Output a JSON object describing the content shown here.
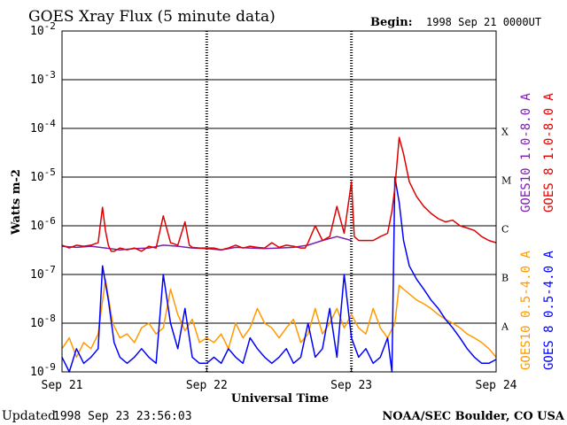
{
  "chart_data": {
    "type": "line",
    "title": "GOES Xray Flux (5 minute data)",
    "begin_label": "Begin:",
    "begin_value": "1998 Sep 21 0000UT",
    "xlabel": "Universal Time",
    "ylabel": "Watts m-2",
    "ylim": [
      1e-09,
      0.01
    ],
    "yscale": "log",
    "x_unit": "days since 1998 Sep 21 00:00 UT",
    "xlim": [
      0,
      3
    ],
    "x_ticks": [
      {
        "x": 0,
        "label": "Sep 21"
      },
      {
        "x": 1,
        "label": "Sep 22"
      },
      {
        "x": 2,
        "label": "Sep 23"
      },
      {
        "x": 3,
        "label": "Sep 24"
      }
    ],
    "y_ticks": [
      {
        "exp": -2,
        "base": "10",
        "power": "-2"
      },
      {
        "exp": -3,
        "base": "10",
        "power": "-3"
      },
      {
        "exp": -4,
        "base": "10",
        "power": "-4"
      },
      {
        "exp": -5,
        "base": "10",
        "power": "-5"
      },
      {
        "exp": -6,
        "base": "10",
        "power": "-6"
      },
      {
        "exp": -7,
        "base": "10",
        "power": "-7"
      },
      {
        "exp": -8,
        "base": "10",
        "power": "-8"
      },
      {
        "exp": -9,
        "base": "10",
        "power": "-9"
      }
    ],
    "flare_classes": [
      {
        "label": "X",
        "exp": -4
      },
      {
        "label": "M",
        "exp": -5
      },
      {
        "label": "C",
        "exp": -6
      },
      {
        "label": "B",
        "exp": -7
      },
      {
        "label": "A",
        "exp": -8
      }
    ],
    "grid": "horizontal lines at each decade from 1e-8 to 1e-3",
    "colors": {
      "goes10_long": "#7a1fb0",
      "goes8_long": "#e00000",
      "goes10_short": "#ff9900",
      "goes8_short": "#0000ff"
    },
    "legend_placement": "right, vertical text",
    "legend": [
      {
        "name": "GOES10 1.0-8.0 A",
        "color": "#7a1fb0"
      },
      {
        "name": "GOES 8 1.0-8.0 A",
        "color": "#e00000"
      },
      {
        "name": "GOES10 0.5-4.0 A",
        "color": "#ff9900"
      },
      {
        "name": "GOES 8 0.5-4.0 A",
        "color": "#0000ff"
      }
    ],
    "series": [
      {
        "name": "GOES 8 1.0-8.0 A",
        "color": "#e00000",
        "x": [
          0,
          0.05,
          0.1,
          0.15,
          0.2,
          0.25,
          0.28,
          0.3,
          0.32,
          0.34,
          0.36,
          0.4,
          0.45,
          0.5,
          0.55,
          0.6,
          0.65,
          0.7,
          0.75,
          0.8,
          0.85,
          0.88,
          0.9,
          0.95,
          1.0,
          1.05,
          1.1,
          1.15,
          1.2,
          1.25,
          1.3,
          1.35,
          1.4,
          1.45,
          1.5,
          1.55,
          1.6,
          1.65,
          1.68,
          1.7,
          1.75,
          1.8,
          1.85,
          1.9,
          1.95,
          2.0,
          2.02,
          2.05,
          2.1,
          2.15,
          2.2,
          2.25,
          2.28,
          2.3,
          2.33,
          2.36,
          2.4,
          2.45,
          2.5,
          2.55,
          2.6,
          2.65,
          2.7,
          2.75,
          2.8,
          2.85,
          2.9,
          2.95,
          3.0
        ],
        "y": [
          4e-07,
          3.5e-07,
          4e-07,
          3.8e-07,
          4e-07,
          4.5e-07,
          2.4e-06,
          8e-07,
          4e-07,
          3e-07,
          3e-07,
          3.5e-07,
          3.2e-07,
          3.5e-07,
          3e-07,
          3.8e-07,
          3.5e-07,
          1.6e-06,
          4.5e-07,
          4e-07,
          1.2e-06,
          4e-07,
          3.6e-07,
          3.5e-07,
          3.5e-07,
          3.5e-07,
          3.2e-07,
          3.5e-07,
          4e-07,
          3.5e-07,
          3.8e-07,
          3.6e-07,
          3.5e-07,
          4.5e-07,
          3.6e-07,
          4e-07,
          3.8e-07,
          3.5e-07,
          3.5e-07,
          4.5e-07,
          1e-06,
          5e-07,
          6e-07,
          2.5e-06,
          7e-07,
          8e-06,
          6e-07,
          5e-07,
          5e-07,
          5e-07,
          6e-07,
          7e-07,
          2e-06,
          6e-06,
          6.5e-05,
          3e-05,
          8e-06,
          4e-06,
          2.5e-06,
          1.8e-06,
          1.4e-06,
          1.2e-06,
          1.3e-06,
          1e-06,
          9e-07,
          8e-07,
          6e-07,
          5e-07,
          4.5e-07
        ]
      },
      {
        "name": "GOES10 1.0-8.0 A",
        "color": "#7a1fb0",
        "x": [
          0,
          0.1,
          0.2,
          0.3,
          0.4,
          0.5,
          0.6,
          0.7,
          0.8,
          0.9,
          1.0,
          1.1,
          1.2,
          1.3,
          1.4,
          1.5,
          1.6,
          1.7,
          1.8,
          1.9,
          2.0
        ],
        "y": [
          3.8e-07,
          3.6e-07,
          3.8e-07,
          3.5e-07,
          3.2e-07,
          3.4e-07,
          3.5e-07,
          4e-07,
          3.8e-07,
          3.5e-07,
          3.4e-07,
          3.2e-07,
          3.6e-07,
          3.5e-07,
          3.4e-07,
          3.5e-07,
          3.6e-07,
          4e-07,
          5e-07,
          6e-07,
          5e-07
        ]
      },
      {
        "name": "GOES10 0.5-4.0 A",
        "color": "#ff9900",
        "x": [
          0,
          0.05,
          0.1,
          0.15,
          0.2,
          0.25,
          0.3,
          0.35,
          0.4,
          0.45,
          0.5,
          0.55,
          0.6,
          0.65,
          0.7,
          0.75,
          0.8,
          0.85,
          0.9,
          0.95,
          1.0,
          1.05,
          1.1,
          1.15,
          1.2,
          1.25,
          1.3,
          1.35,
          1.4,
          1.45,
          1.5,
          1.55,
          1.6,
          1.65,
          1.7,
          1.75,
          1.8,
          1.85,
          1.9,
          1.95,
          2.0,
          2.05,
          2.1,
          2.15,
          2.2,
          2.25,
          2.3,
          2.33,
          2.36,
          2.4,
          2.45,
          2.5,
          2.55,
          2.6,
          2.65,
          2.7,
          2.75,
          2.8,
          2.85,
          2.9,
          2.95,
          3.0
        ],
        "y": [
          3e-09,
          5e-09,
          2e-09,
          4e-09,
          3e-09,
          6e-09,
          8e-08,
          1e-08,
          5e-09,
          6e-09,
          4e-09,
          8e-09,
          1e-08,
          6e-09,
          8e-09,
          5e-08,
          1.5e-08,
          7e-09,
          1.2e-08,
          4e-09,
          5e-09,
          4e-09,
          6e-09,
          3e-09,
          1e-08,
          5e-09,
          8e-09,
          2e-08,
          1e-08,
          8e-09,
          5e-09,
          8e-09,
          1.2e-08,
          4e-09,
          6e-09,
          2e-08,
          6e-09,
          1e-08,
          2e-08,
          8e-09,
          1.5e-08,
          8e-09,
          6e-09,
          2e-08,
          8e-09,
          5e-09,
          1e-08,
          6e-08,
          5e-08,
          4e-08,
          3e-08,
          2.5e-08,
          2e-08,
          1.5e-08,
          1.2e-08,
          1e-08,
          8e-09,
          6e-09,
          5e-09,
          4e-09,
          3e-09,
          2e-09
        ]
      },
      {
        "name": "GOES 8 0.5-4.0 A",
        "color": "#0000ff",
        "x": [
          0,
          0.05,
          0.1,
          0.15,
          0.2,
          0.25,
          0.28,
          0.32,
          0.36,
          0.4,
          0.45,
          0.5,
          0.55,
          0.6,
          0.65,
          0.7,
          0.75,
          0.8,
          0.85,
          0.9,
          0.95,
          1.0,
          1.05,
          1.1,
          1.15,
          1.2,
          1.25,
          1.3,
          1.35,
          1.4,
          1.45,
          1.5,
          1.55,
          1.6,
          1.65,
          1.7,
          1.75,
          1.8,
          1.85,
          1.9,
          1.95,
          2.0,
          2.05,
          2.1,
          2.15,
          2.2,
          2.25,
          2.28,
          2.3,
          2.33,
          2.36,
          2.4,
          2.45,
          2.5,
          2.55,
          2.6,
          2.65,
          2.7,
          2.75,
          2.8,
          2.85,
          2.9,
          2.95,
          3.0
        ],
        "y": [
          2e-09,
          1e-09,
          3e-09,
          1.5e-09,
          2e-09,
          3e-09,
          1.5e-07,
          3e-08,
          4e-09,
          2e-09,
          1.5e-09,
          2e-09,
          3e-09,
          2e-09,
          1.5e-09,
          1e-07,
          1e-08,
          3e-09,
          2e-08,
          2e-09,
          1.5e-09,
          1.5e-09,
          2e-09,
          1.5e-09,
          3e-09,
          2e-09,
          1.5e-09,
          5e-09,
          3e-09,
          2e-09,
          1.5e-09,
          2e-09,
          3e-09,
          1.5e-09,
          2e-09,
          1e-08,
          2e-09,
          3e-09,
          2e-08,
          2e-09,
          1e-07,
          5e-09,
          2e-09,
          3e-09,
          1.5e-09,
          2e-09,
          5e-09,
          1e-09,
          1e-05,
          3e-06,
          5e-07,
          1.5e-07,
          8e-08,
          5e-08,
          3e-08,
          2e-08,
          1.2e-08,
          8e-09,
          5e-09,
          3e-09,
          2e-09,
          1.5e-09,
          1.5e-09,
          1.8e-09
        ]
      }
    ]
  },
  "footer": {
    "updated_label": "Updated",
    "updated_value": "1998 Sep 23 23:56:03",
    "credit": "NOAA/SEC Boulder, CO USA"
  }
}
